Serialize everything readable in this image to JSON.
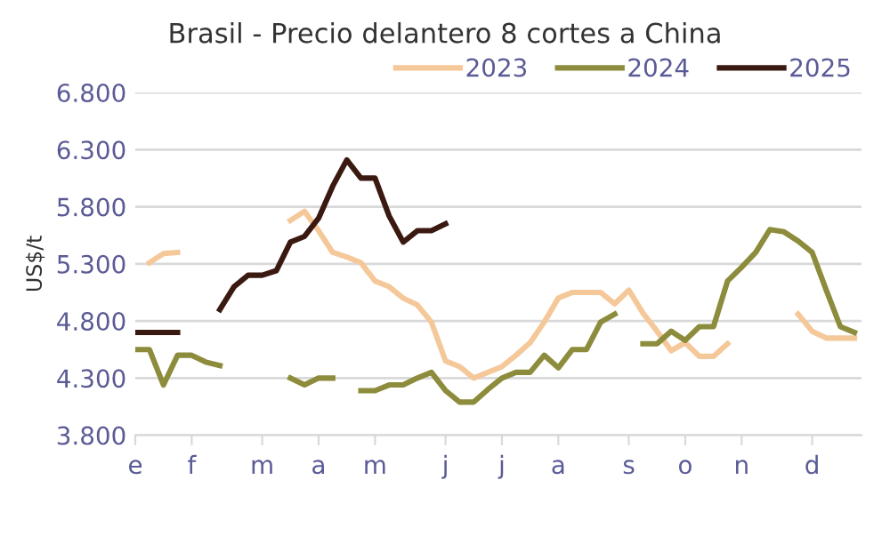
{
  "chart_data": {
    "type": "line",
    "title": "Brasil - Precio delantero 8 cortes a China",
    "ylabel": "US$/t",
    "categories": [
      "e",
      null,
      null,
      null,
      "f",
      null,
      null,
      null,
      null,
      "m",
      null,
      null,
      null,
      "a",
      null,
      null,
      null,
      "m",
      null,
      null,
      null,
      null,
      "j",
      null,
      null,
      null,
      "j",
      null,
      null,
      null,
      "a",
      null,
      null,
      null,
      null,
      "s",
      null,
      null,
      null,
      "o",
      null,
      null,
      null,
      "n",
      null,
      null,
      null,
      null,
      "d",
      null,
      null,
      null
    ],
    "ylim": [
      3800,
      6800
    ],
    "yticks": [
      {
        "value": 3800,
        "label": "3.800"
      },
      {
        "value": 4300,
        "label": "4.300"
      },
      {
        "value": 4800,
        "label": "4.800"
      },
      {
        "value": 5300,
        "label": "5.300"
      },
      {
        "value": 5800,
        "label": "5.800"
      },
      {
        "value": 6300,
        "label": "6.300"
      },
      {
        "value": 6800,
        "label": "6.800"
      }
    ],
    "grid": "y",
    "legend": "top right",
    "marker": "none",
    "line_style": "solid",
    "series": [
      {
        "name": "2023",
        "color": "#f5c89a",
        "values": [
          null,
          5310,
          5390,
          5400,
          null,
          null,
          null,
          null,
          null,
          null,
          null,
          5680,
          5760,
          5590,
          5400,
          5360,
          5310,
          5150,
          5100,
          5000,
          4940,
          4790,
          4450,
          4400,
          4300,
          4350,
          4400,
          4500,
          4610,
          4790,
          5000,
          5050,
          5050,
          5050,
          4950,
          5070,
          4870,
          4710,
          4540,
          4610,
          4490,
          4490,
          4600,
          null,
          null,
          null,
          null,
          4860,
          4710,
          4650,
          4650,
          4650
        ]
      },
      {
        "name": "2024",
        "color": "#8c8c3c",
        "values": [
          4550,
          4550,
          4240,
          4500,
          4500,
          4440,
          4410,
          null,
          null,
          null,
          null,
          4300,
          4240,
          4300,
          4300,
          null,
          4190,
          4190,
          4240,
          4240,
          4300,
          4350,
          4190,
          4090,
          4090,
          4200,
          4300,
          4350,
          4350,
          4500,
          4390,
          4550,
          4550,
          4790,
          4860,
          null,
          4600,
          4600,
          4710,
          4630,
          4750,
          4750,
          5150,
          5270,
          5400,
          5600,
          5580,
          5500,
          5400,
          5070,
          4750,
          4700
        ]
      },
      {
        "name": "2025",
        "color": "#3a1a10",
        "values": [
          4700,
          4700,
          4700,
          4700,
          null,
          null,
          4900,
          5100,
          5200,
          5200,
          5240,
          5490,
          5540,
          5700,
          5980,
          6210,
          6050,
          6050,
          5720,
          5490,
          5590,
          5590,
          5650,
          null,
          null,
          null,
          null,
          null,
          null,
          null,
          null,
          null,
          null,
          null,
          null,
          null,
          null,
          null,
          null,
          null,
          null,
          null,
          null,
          null,
          null,
          null,
          null,
          null,
          null,
          null,
          null,
          null
        ]
      }
    ]
  }
}
